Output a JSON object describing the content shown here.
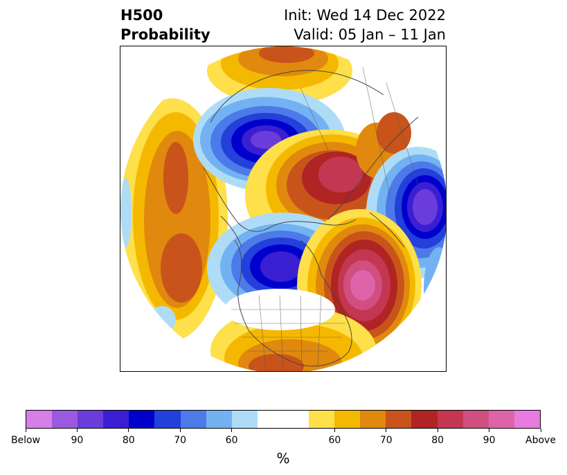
{
  "title": {
    "left_line1": "H500",
    "left_line2": "Probability",
    "right_line1": "Init: Wed 14 Dec 2022",
    "right_line2": "Valid: 05 Jan – 11 Jan"
  },
  "map": {
    "projection": "north-polar-stereographic",
    "regions": [
      {
        "name": "below-normal-north-pacific-alaska",
        "label": "",
        "level": "Below ~90%"
      },
      {
        "name": "below-normal-canada-hudson-bay",
        "label": "",
        "level": "Below ~90%"
      },
      {
        "name": "below-normal-western-siberia",
        "label": "",
        "level": "Below ~90%"
      },
      {
        "name": "above-normal-north-atlantic",
        "label": "",
        "level": "Above ~90%"
      },
      {
        "name": "above-normal-arctic-kara-sea",
        "label": "",
        "level": "Above ~85%"
      },
      {
        "name": "above-normal-siberia-east",
        "label": "",
        "level": "Above ~75%"
      },
      {
        "name": "above-normal-north-pacific-west",
        "label": "",
        "level": "Above ~75%"
      },
      {
        "name": "above-normal-central-pacific",
        "label": "",
        "level": "Above ~75%"
      },
      {
        "name": "above-normal-southern-us",
        "label": "",
        "level": "Above ~70%"
      }
    ]
  },
  "colorbar": {
    "unit": "%",
    "colors": [
      "#d77ee8",
      "#9b59e0",
      "#6a3ddb",
      "#3a1fd2",
      "#0000cd",
      "#2340da",
      "#4d7ae8",
      "#73b2f2",
      "#aedcf7",
      "#ffffff",
      "#ffffff",
      "#fde04a",
      "#f5b800",
      "#e0890e",
      "#c8541b",
      "#b02424",
      "#c33752",
      "#d04f80",
      "#de64aa",
      "#e87be0"
    ],
    "ticks": [
      "Below",
      "90",
      "80",
      "70",
      "60",
      "60",
      "70",
      "80",
      "90",
      "Above"
    ]
  }
}
